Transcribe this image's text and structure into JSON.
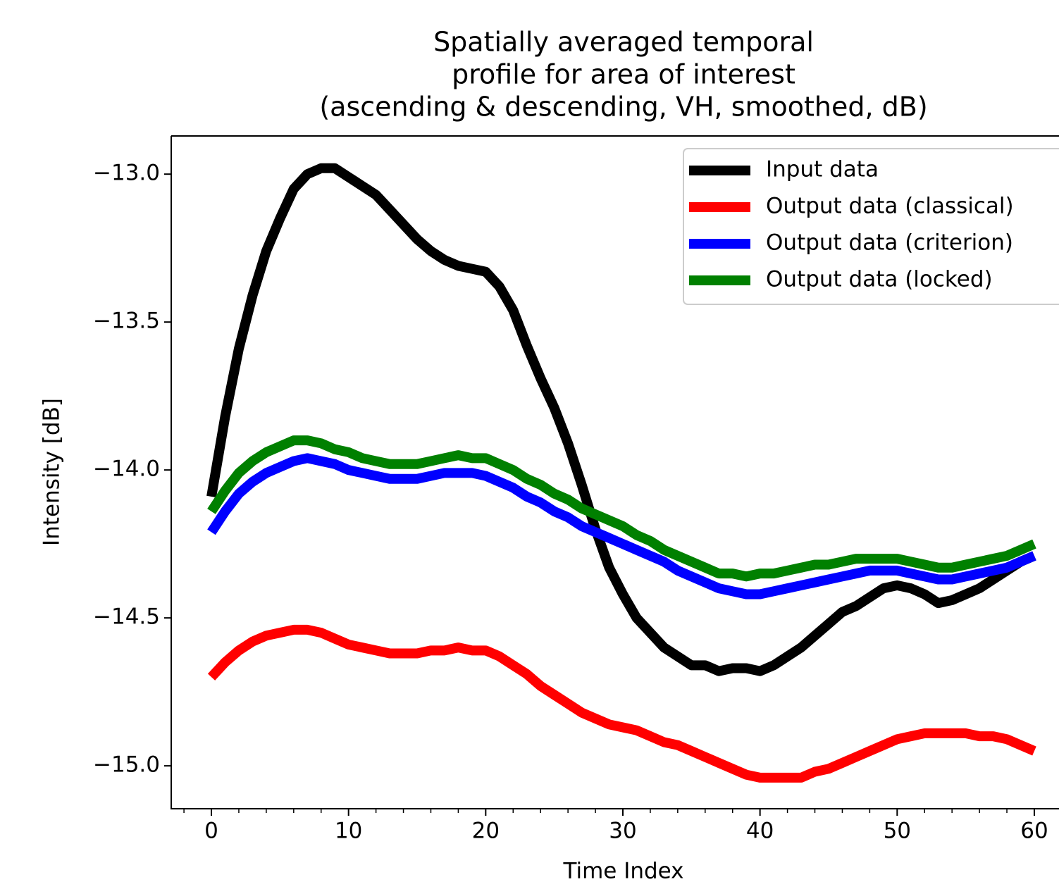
{
  "chart_data": {
    "type": "line",
    "title": [
      "Spatially averaged temporal",
      "profile for area of interest",
      "(ascending & descending, VH, smoothed, dB)"
    ],
    "xlabel": "Time Index",
    "ylabel": "Intensity [dB]",
    "x": [
      0,
      1,
      2,
      3,
      4,
      5,
      6,
      7,
      8,
      9,
      10,
      11,
      12,
      13,
      14,
      15,
      16,
      17,
      18,
      19,
      20,
      21,
      22,
      23,
      24,
      25,
      26,
      27,
      28,
      29,
      30,
      31,
      32,
      33,
      34,
      35,
      36,
      37,
      38,
      39,
      40,
      41,
      42,
      43,
      44,
      45,
      46,
      47,
      48,
      49,
      50,
      51,
      52,
      53,
      54,
      55,
      56,
      57,
      58,
      59,
      60
    ],
    "series": [
      {
        "name": "Input data",
        "color": "#000000",
        "values": [
          -14.09,
          -13.82,
          -13.59,
          -13.41,
          -13.26,
          -13.15,
          -13.05,
          -13.0,
          -12.98,
          -12.98,
          -13.01,
          -13.04,
          -13.07,
          -13.12,
          -13.17,
          -13.22,
          -13.26,
          -13.29,
          -13.31,
          -13.32,
          -13.33,
          -13.38,
          -13.46,
          -13.58,
          -13.69,
          -13.79,
          -13.91,
          -14.05,
          -14.2,
          -14.33,
          -14.42,
          -14.5,
          -14.55,
          -14.6,
          -14.63,
          -14.66,
          -14.66,
          -14.68,
          -14.67,
          -14.67,
          -14.68,
          -14.66,
          -14.63,
          -14.6,
          -14.56,
          -14.52,
          -14.48,
          -14.46,
          -14.43,
          -14.4,
          -14.39,
          -14.4,
          -14.42,
          -14.45,
          -14.44,
          -14.42,
          -14.4,
          -14.37,
          -14.34,
          -14.31,
          -14.29
        ]
      },
      {
        "name": "Output data (classical)",
        "color": "#ff0000",
        "values": [
          -14.7,
          -14.65,
          -14.61,
          -14.58,
          -14.56,
          -14.55,
          -14.54,
          -14.54,
          -14.55,
          -14.57,
          -14.59,
          -14.6,
          -14.61,
          -14.62,
          -14.62,
          -14.62,
          -14.61,
          -14.61,
          -14.6,
          -14.61,
          -14.61,
          -14.63,
          -14.66,
          -14.69,
          -14.73,
          -14.76,
          -14.79,
          -14.82,
          -14.84,
          -14.86,
          -14.87,
          -14.88,
          -14.9,
          -14.92,
          -14.93,
          -14.95,
          -14.97,
          -14.99,
          -15.01,
          -15.03,
          -15.04,
          -15.04,
          -15.04,
          -15.04,
          -15.02,
          -15.01,
          -14.99,
          -14.97,
          -14.95,
          -14.93,
          -14.91,
          -14.9,
          -14.89,
          -14.89,
          -14.89,
          -14.89,
          -14.9,
          -14.9,
          -14.91,
          -14.93,
          -14.95
        ]
      },
      {
        "name": "Output data (criterion)",
        "color": "#0000ff",
        "values": [
          -14.21,
          -14.14,
          -14.08,
          -14.04,
          -14.01,
          -13.99,
          -13.97,
          -13.96,
          -13.97,
          -13.98,
          -14.0,
          -14.01,
          -14.02,
          -14.03,
          -14.03,
          -14.03,
          -14.02,
          -14.01,
          -14.01,
          -14.01,
          -14.02,
          -14.04,
          -14.06,
          -14.09,
          -14.11,
          -14.14,
          -14.16,
          -14.19,
          -14.21,
          -14.23,
          -14.25,
          -14.27,
          -14.29,
          -14.31,
          -14.34,
          -14.36,
          -14.38,
          -14.4,
          -14.41,
          -14.42,
          -14.42,
          -14.41,
          -14.4,
          -14.39,
          -14.38,
          -14.37,
          -14.36,
          -14.35,
          -14.34,
          -14.34,
          -14.34,
          -14.35,
          -14.36,
          -14.37,
          -14.37,
          -14.36,
          -14.35,
          -14.34,
          -14.33,
          -14.31,
          -14.29
        ]
      },
      {
        "name": "Output data (locked)",
        "color": "#008000",
        "values": [
          -14.14,
          -14.07,
          -14.01,
          -13.97,
          -13.94,
          -13.92,
          -13.9,
          -13.9,
          -13.91,
          -13.93,
          -13.94,
          -13.96,
          -13.97,
          -13.98,
          -13.98,
          -13.98,
          -13.97,
          -13.96,
          -13.95,
          -13.96,
          -13.96,
          -13.98,
          -14.0,
          -14.03,
          -14.05,
          -14.08,
          -14.1,
          -14.13,
          -14.15,
          -14.17,
          -14.19,
          -14.22,
          -14.24,
          -14.27,
          -14.29,
          -14.31,
          -14.33,
          -14.35,
          -14.35,
          -14.36,
          -14.35,
          -14.35,
          -14.34,
          -14.33,
          -14.32,
          -14.32,
          -14.31,
          -14.3,
          -14.3,
          -14.3,
          -14.3,
          -14.31,
          -14.32,
          -14.33,
          -14.33,
          -14.32,
          -14.31,
          -14.3,
          -14.29,
          -14.27,
          -14.25
        ]
      }
    ],
    "xlim": [
      -2.93,
      61.8
    ],
    "ylim": [
      -15.145,
      -12.871
    ],
    "xticks": [
      0,
      10,
      20,
      30,
      40,
      50,
      60
    ],
    "xminorticks": [
      -2,
      2,
      4,
      6,
      8,
      12,
      14,
      16,
      18,
      22,
      24,
      26,
      28,
      32,
      34,
      36,
      38,
      42,
      44,
      46,
      48,
      52,
      54,
      56,
      58,
      62
    ],
    "yticks": [
      {
        "value": -13.0,
        "label": "−13.0"
      },
      {
        "value": -13.5,
        "label": "−13.5"
      },
      {
        "value": -14.0,
        "label": "−14.0"
      },
      {
        "value": -14.5,
        "label": "−14.5"
      },
      {
        "value": -15.0,
        "label": "−15.0"
      }
    ],
    "grid": false,
    "legend": "upper right"
  }
}
